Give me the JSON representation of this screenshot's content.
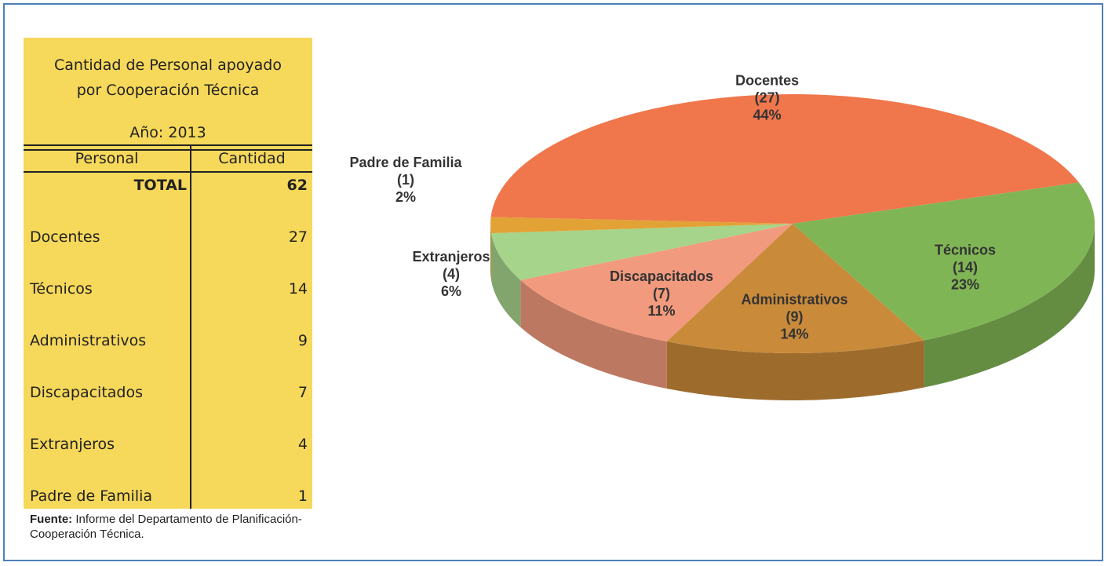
{
  "table": {
    "title": [
      "Cantidad de Personal apoyado",
      "por Cooperación Técnica",
      "Año: 2013"
    ],
    "header": [
      "Personal",
      "Cantidad"
    ],
    "total": [
      "TOTAL",
      "62"
    ],
    "rows": [
      [
        "Docentes",
        "27"
      ],
      [
        "Técnicos",
        "14"
      ],
      [
        "Administrativos",
        "9"
      ],
      [
        "Discapacitados",
        "7"
      ],
      [
        "Extranjeros",
        "4"
      ],
      [
        "Padre de Familia",
        "1"
      ]
    ],
    "source_label": "Fuente:",
    "source_text": "Informe del Departamento de Planificación-Cooperación Técnica."
  },
  "chart_data": {
    "type": "pie",
    "categories": [
      "Docentes",
      "Técnicos",
      "Administrativos",
      "Discapacitados",
      "Extranjeros",
      "Padre de Familia"
    ],
    "values": [
      44,
      23,
      14,
      11,
      6,
      2
    ],
    "value_labels": [
      "44%",
      "23%",
      "14%",
      "11%",
      "6%",
      "2%"
    ],
    "count_labels": [
      "(27)",
      "(14)",
      "(9)",
      "(7)",
      "(4)",
      "(1)"
    ],
    "colors": [
      "#f0764c",
      "#80b555",
      "#c98a3a",
      "#f29a7e",
      "#a6d48a",
      "#e2a235"
    ]
  }
}
